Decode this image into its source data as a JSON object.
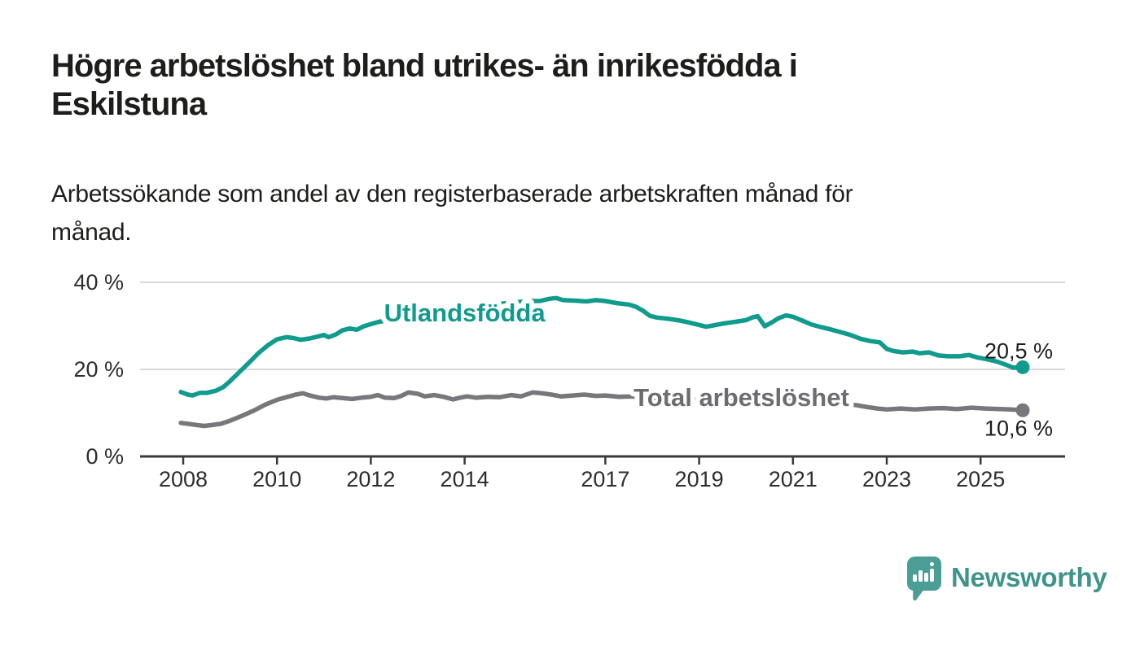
{
  "header": {
    "title": "Högre arbetslöshet bland utrikes- än inrikesfödda i\nEskilstuna",
    "subtitle": "Arbetssökande som andel av den registerbaserade arbetskraften månad för\nmånad."
  },
  "chart_data": {
    "type": "line",
    "title": "Högre arbetslöshet bland utrikes- än inrikesfödda i Eskilstuna",
    "unit": "%",
    "grid": "horizontal-only",
    "legend_position": "inline-labels-on-lines",
    "xlim": [
      2007.8,
      2026.3
    ],
    "ylim": [
      0,
      43
    ],
    "x_ticks": [
      "2008",
      "2010",
      "2012",
      "2014",
      "2017",
      "2019",
      "2021",
      "2023",
      "2025"
    ],
    "x_tick_years": [
      2008,
      2010,
      2012,
      2014,
      2017,
      2019,
      2021,
      2023,
      2025
    ],
    "y_ticks": [
      {
        "value": 0,
        "label": "0 %"
      },
      {
        "value": 20,
        "label": "20 %"
      },
      {
        "value": 40,
        "label": "40 %"
      }
    ],
    "colors": {
      "accent_teal": "#109b8d",
      "line_gray": "#77777c",
      "gray_label": "#6c6c71",
      "text_dark": "#1d1d1b",
      "axis": "#3a3a3a",
      "gridline": "#d9d9d9"
    },
    "series": [
      {
        "name": "Utlandsfödda",
        "color": "#109b8d",
        "label_color": "#109b8d",
        "label_at": [
          2014.0,
          33.1
        ],
        "end_label": "20,5 %",
        "end_value": 20.5,
        "end_label_side": "above",
        "points": [
          [
            2007.95,
            14.8
          ],
          [
            2008.1,
            14.2
          ],
          [
            2008.2,
            14.0
          ],
          [
            2008.35,
            14.6
          ],
          [
            2008.5,
            14.6
          ],
          [
            2008.7,
            15.1
          ],
          [
            2008.85,
            15.9
          ],
          [
            2009.0,
            17.3
          ],
          [
            2009.2,
            19.4
          ],
          [
            2009.4,
            21.5
          ],
          [
            2009.6,
            23.7
          ],
          [
            2009.8,
            25.5
          ],
          [
            2010.0,
            26.9
          ],
          [
            2010.2,
            27.4
          ],
          [
            2010.35,
            27.2
          ],
          [
            2010.5,
            26.8
          ],
          [
            2010.7,
            27.1
          ],
          [
            2010.85,
            27.5
          ],
          [
            2011.0,
            27.9
          ],
          [
            2011.1,
            27.4
          ],
          [
            2011.25,
            28.0
          ],
          [
            2011.4,
            29.0
          ],
          [
            2011.55,
            29.4
          ],
          [
            2011.7,
            29.1
          ],
          [
            2011.85,
            29.9
          ],
          [
            2012.0,
            30.4
          ],
          [
            2012.2,
            31.0
          ],
          [
            2012.35,
            31.2
          ],
          [
            2012.5,
            31.5
          ],
          [
            2012.75,
            32.3
          ],
          [
            2013.0,
            33.0
          ],
          [
            2013.25,
            33.4
          ],
          [
            2013.5,
            33.8
          ],
          [
            2013.75,
            34.1
          ],
          [
            2014.0,
            34.3
          ],
          [
            2014.5,
            34.8
          ],
          [
            2015.0,
            35.3
          ],
          [
            2015.35,
            35.7
          ],
          [
            2015.6,
            35.7
          ],
          [
            2015.8,
            36.2
          ],
          [
            2015.95,
            36.4
          ],
          [
            2016.1,
            35.9
          ],
          [
            2016.35,
            35.8
          ],
          [
            2016.6,
            35.6
          ],
          [
            2016.8,
            35.9
          ],
          [
            2017.0,
            35.7
          ],
          [
            2017.25,
            35.2
          ],
          [
            2017.5,
            34.9
          ],
          [
            2017.65,
            34.4
          ],
          [
            2017.8,
            33.5
          ],
          [
            2017.95,
            32.3
          ],
          [
            2018.1,
            31.9
          ],
          [
            2018.35,
            31.6
          ],
          [
            2018.6,
            31.2
          ],
          [
            2018.85,
            30.6
          ],
          [
            2019.0,
            30.2
          ],
          [
            2019.15,
            29.8
          ],
          [
            2019.3,
            30.1
          ],
          [
            2019.5,
            30.5
          ],
          [
            2019.75,
            30.9
          ],
          [
            2020.0,
            31.3
          ],
          [
            2020.15,
            32.0
          ],
          [
            2020.25,
            32.2
          ],
          [
            2020.4,
            29.9
          ],
          [
            2020.55,
            30.8
          ],
          [
            2020.7,
            31.8
          ],
          [
            2020.85,
            32.4
          ],
          [
            2021.0,
            32.1
          ],
          [
            2021.2,
            31.2
          ],
          [
            2021.4,
            30.3
          ],
          [
            2021.6,
            29.7
          ],
          [
            2021.8,
            29.2
          ],
          [
            2022.0,
            28.6
          ],
          [
            2022.2,
            28.0
          ],
          [
            2022.45,
            27.0
          ],
          [
            2022.65,
            26.5
          ],
          [
            2022.85,
            26.2
          ],
          [
            2023.0,
            24.7
          ],
          [
            2023.15,
            24.2
          ],
          [
            2023.35,
            23.9
          ],
          [
            2023.55,
            24.1
          ],
          [
            2023.7,
            23.7
          ],
          [
            2023.9,
            23.9
          ],
          [
            2024.1,
            23.2
          ],
          [
            2024.3,
            23.0
          ],
          [
            2024.55,
            23.0
          ],
          [
            2024.75,
            23.3
          ],
          [
            2024.95,
            22.7
          ],
          [
            2025.15,
            22.3
          ],
          [
            2025.35,
            21.8
          ],
          [
            2025.55,
            21.0
          ],
          [
            2025.7,
            20.4
          ],
          [
            2025.9,
            20.5
          ]
        ]
      },
      {
        "name": "Total arbetslöshet",
        "color": "#77777c",
        "label_color": "#6c6c71",
        "label_at": [
          2019.9,
          13.65
        ],
        "end_label": "10,6 %",
        "end_value": 10.6,
        "end_label_side": "below",
        "points": [
          [
            2007.95,
            7.7
          ],
          [
            2008.1,
            7.5
          ],
          [
            2008.3,
            7.2
          ],
          [
            2008.45,
            7.0
          ],
          [
            2008.6,
            7.2
          ],
          [
            2008.8,
            7.5
          ],
          [
            2009.0,
            8.2
          ],
          [
            2009.25,
            9.3
          ],
          [
            2009.5,
            10.5
          ],
          [
            2009.75,
            11.9
          ],
          [
            2010.0,
            13.0
          ],
          [
            2010.2,
            13.6
          ],
          [
            2010.4,
            14.2
          ],
          [
            2010.55,
            14.5
          ],
          [
            2010.7,
            14.0
          ],
          [
            2010.9,
            13.5
          ],
          [
            2011.05,
            13.3
          ],
          [
            2011.2,
            13.6
          ],
          [
            2011.4,
            13.4
          ],
          [
            2011.6,
            13.2
          ],
          [
            2011.8,
            13.5
          ],
          [
            2012.0,
            13.7
          ],
          [
            2012.15,
            14.1
          ],
          [
            2012.3,
            13.5
          ],
          [
            2012.5,
            13.4
          ],
          [
            2012.65,
            13.9
          ],
          [
            2012.8,
            14.7
          ],
          [
            2013.0,
            14.4
          ],
          [
            2013.15,
            13.8
          ],
          [
            2013.35,
            14.1
          ],
          [
            2013.55,
            13.7
          ],
          [
            2013.75,
            13.1
          ],
          [
            2013.9,
            13.5
          ],
          [
            2014.05,
            13.8
          ],
          [
            2014.25,
            13.5
          ],
          [
            2014.5,
            13.7
          ],
          [
            2014.75,
            13.6
          ],
          [
            2015.0,
            14.1
          ],
          [
            2015.2,
            13.8
          ],
          [
            2015.45,
            14.7
          ],
          [
            2015.65,
            14.5
          ],
          [
            2015.85,
            14.2
          ],
          [
            2016.05,
            13.8
          ],
          [
            2016.3,
            14.0
          ],
          [
            2016.55,
            14.2
          ],
          [
            2016.8,
            13.9
          ],
          [
            2017.0,
            14.0
          ],
          [
            2017.3,
            13.7
          ],
          [
            2017.55,
            13.8
          ],
          [
            2018.0,
            13.4
          ],
          [
            2018.5,
            13.2
          ],
          [
            2019.0,
            13.0
          ],
          [
            2019.5,
            12.9
          ],
          [
            2020.0,
            13.2
          ],
          [
            2020.4,
            12.8
          ],
          [
            2020.8,
            13.3
          ],
          [
            2021.0,
            13.1
          ],
          [
            2021.5,
            12.5
          ],
          [
            2022.0,
            12.0
          ],
          [
            2022.35,
            11.8
          ],
          [
            2022.55,
            11.4
          ],
          [
            2022.8,
            11.0
          ],
          [
            2023.0,
            10.8
          ],
          [
            2023.3,
            11.0
          ],
          [
            2023.6,
            10.8
          ],
          [
            2023.9,
            11.0
          ],
          [
            2024.2,
            11.1
          ],
          [
            2024.5,
            10.9
          ],
          [
            2024.8,
            11.2
          ],
          [
            2025.1,
            11.0
          ],
          [
            2025.4,
            10.9
          ],
          [
            2025.65,
            10.8
          ],
          [
            2025.9,
            10.6
          ]
        ]
      }
    ]
  },
  "footer": {
    "brand": "Newsworthy"
  }
}
